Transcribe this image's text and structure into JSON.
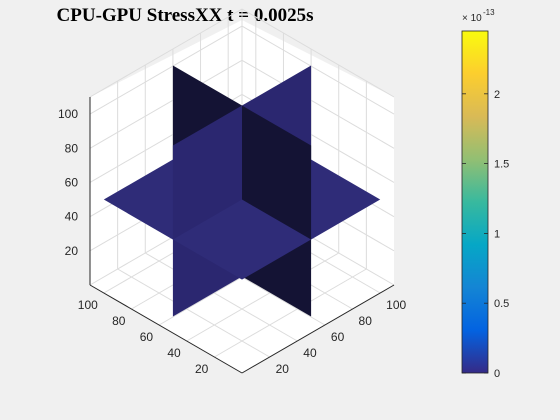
{
  "title": "CPU-GPU StressXX t = 0.0025s",
  "colors": {
    "figure_bg": "#f0f0f0",
    "axes_bg": "#ffffff",
    "grid": "#dcdcdc",
    "axis_line": "#262626",
    "slice_top": "#2f2c78",
    "slice_front": "#2b2770",
    "slice_dark": "#141334"
  },
  "colorbar": {
    "colormap": "parula",
    "exponent_base": "× 10",
    "exponent_power": "-13",
    "ticks": [
      {
        "value": 0,
        "label": "0"
      },
      {
        "value": 0.5,
        "label": "0.5"
      },
      {
        "value": 1,
        "label": "1"
      },
      {
        "value": 1.5,
        "label": "1.5"
      },
      {
        "value": 2,
        "label": "2"
      }
    ],
    "range": [
      0,
      2.45
    ]
  },
  "chart_data": {
    "type": "slice",
    "title": "CPU-GPU StressXX t = 0.0025s",
    "xlabel": "",
    "ylabel": "",
    "zlabel": "",
    "x_ticks": [
      "20",
      "40",
      "60",
      "80",
      "100"
    ],
    "y_ticks": [
      "20",
      "40",
      "60",
      "80",
      "100"
    ],
    "z_ticks": [
      "20",
      "40",
      "60",
      "80",
      "100"
    ],
    "xlim": [
      0,
      110
    ],
    "ylim": [
      0,
      110
    ],
    "zlim": [
      0,
      110
    ],
    "slices": [
      {
        "plane": "x",
        "position": 55,
        "value": 0
      },
      {
        "plane": "y",
        "position": 55,
        "value": 0
      },
      {
        "plane": "z",
        "position": 50,
        "value": 0
      }
    ],
    "clim": [
      0,
      2.45e-13
    ],
    "grid": true
  }
}
